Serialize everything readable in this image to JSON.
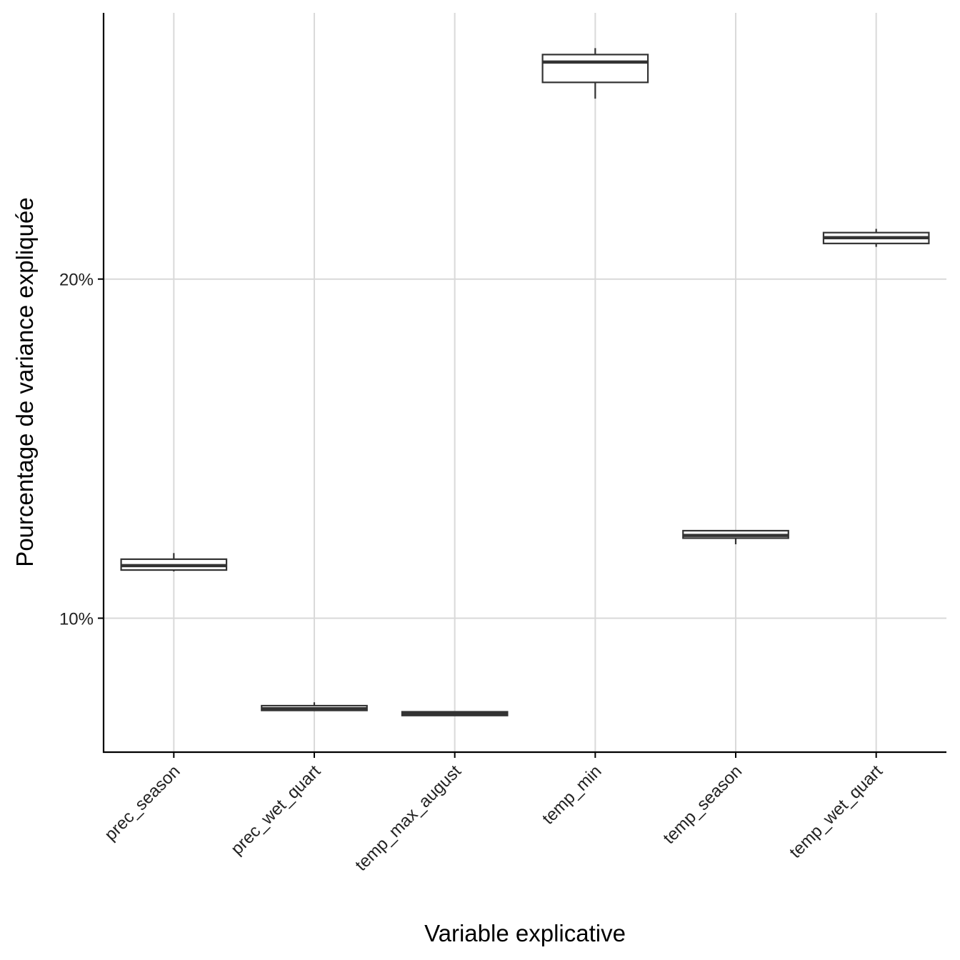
{
  "chart_data": {
    "type": "boxplot",
    "title": "",
    "xlabel": "Variable explicative",
    "ylabel": "Pourcentage de variance expliquée",
    "categories": [
      "prec_season",
      "prec_wet_quart",
      "temp_max_august",
      "temp_min",
      "temp_season",
      "temp_wet_quart"
    ],
    "boxes": [
      {
        "category": "prec_season",
        "whisker_low": 11.38,
        "q1": 11.42,
        "median": 11.55,
        "q3": 11.74,
        "whisker_high": 11.92
      },
      {
        "category": "prec_wet_quart",
        "whisker_low": 7.26,
        "q1": 7.28,
        "median": 7.33,
        "q3": 7.42,
        "whisker_high": 7.52
      },
      {
        "category": "temp_max_august",
        "whisker_low": 7.12,
        "q1": 7.13,
        "median": 7.18,
        "q3": 7.24,
        "whisker_high": 7.26
      },
      {
        "category": "temp_min",
        "whisker_low": 25.32,
        "q1": 25.8,
        "median": 26.4,
        "q3": 26.62,
        "whisker_high": 26.81
      },
      {
        "category": "temp_season",
        "whisker_low": 12.18,
        "q1": 12.36,
        "median": 12.44,
        "q3": 12.58,
        "whisker_high": 12.6
      },
      {
        "category": "temp_wet_quart",
        "whisker_low": 20.95,
        "q1": 21.05,
        "median": 21.22,
        "q3": 21.37,
        "whisker_high": 21.48
      }
    ],
    "yticks": [
      {
        "value": 10,
        "label": "10%"
      },
      {
        "value": 20,
        "label": "20%"
      }
    ],
    "ylim": [
      6.05,
      27.85
    ],
    "grid": true,
    "legend": "none",
    "colors": {
      "box_stroke": "#333333",
      "box_fill": "#ffffff",
      "grid": "#d9d9d9",
      "axis": "#000000"
    }
  }
}
